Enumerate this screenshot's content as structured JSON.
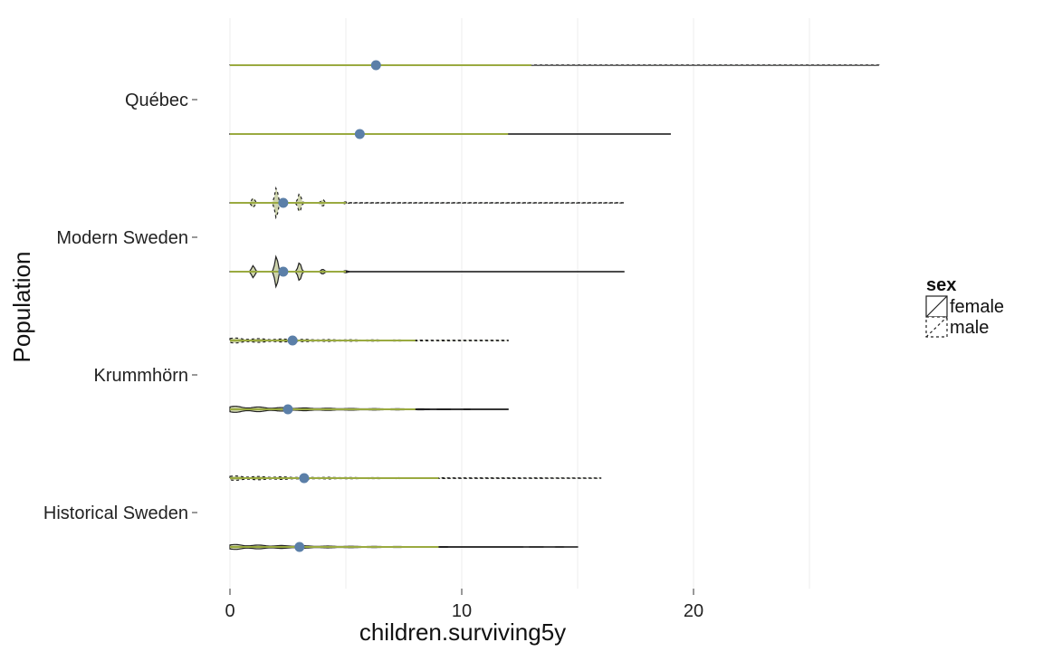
{
  "chart_data": {
    "type": "violin",
    "xlabel": "children.surviving5y",
    "ylabel": "Population",
    "xlim": [
      0,
      28
    ],
    "x_ticks": [
      0,
      10,
      20
    ],
    "x_tick_labels": [
      "0",
      "10",
      "20"
    ],
    "grid": true,
    "legend": {
      "title": "sex",
      "position": "right",
      "entries": [
        {
          "label": "female",
          "linetype": "solid"
        },
        {
          "label": "male",
          "linetype": "dashed"
        }
      ]
    },
    "categories": [
      "Québec",
      "Modern Sweden",
      "Krummhörn",
      "Historical Sweden"
    ],
    "series": [
      {
        "category": "Québec",
        "sex": "male",
        "min": 0,
        "iqr_upper": 13,
        "max": 28,
        "mean": 6.3,
        "width": 0.25
      },
      {
        "category": "Québec",
        "sex": "female",
        "min": 0,
        "iqr_upper": 12,
        "max": 19,
        "mean": 5.6,
        "width": 0.35
      },
      {
        "category": "Modern Sweden",
        "sex": "male",
        "min": 0,
        "iqr_upper": 5,
        "max": 17,
        "mean": 2.3,
        "modes": [
          [
            1,
            10
          ],
          [
            2,
            33
          ],
          [
            3,
            20
          ],
          [
            4,
            7
          ],
          [
            5,
            2
          ]
        ]
      },
      {
        "category": "Modern Sweden",
        "sex": "female",
        "min": 0,
        "iqr_upper": 5,
        "max": 17,
        "mean": 2.3,
        "modes": [
          [
            1,
            13
          ],
          [
            2,
            34
          ],
          [
            3,
            20
          ],
          [
            4,
            5
          ],
          [
            5,
            2
          ]
        ]
      },
      {
        "category": "Krummhörn",
        "sex": "male",
        "min": 0,
        "iqr_upper": 8,
        "max": 12,
        "mean": 2.7,
        "width": 4
      },
      {
        "category": "Krummhörn",
        "sex": "female",
        "min": 0,
        "iqr_upper": 8,
        "max": 12,
        "mean": 2.5,
        "width": 5
      },
      {
        "category": "Historical Sweden",
        "sex": "male",
        "min": 0,
        "iqr_upper": 9,
        "max": 16,
        "mean": 3.2,
        "width": 3.5
      },
      {
        "category": "Historical Sweden",
        "sex": "female",
        "min": 0,
        "iqr_upper": 9,
        "max": 15,
        "mean": 3.0,
        "width": 4
      }
    ],
    "colors": {
      "mean_point": "#5b7fa8",
      "iqr_line": "#9aaa40",
      "violin_fill": "#b9c28a",
      "outline": "#222222",
      "grid": "#ececec"
    }
  }
}
